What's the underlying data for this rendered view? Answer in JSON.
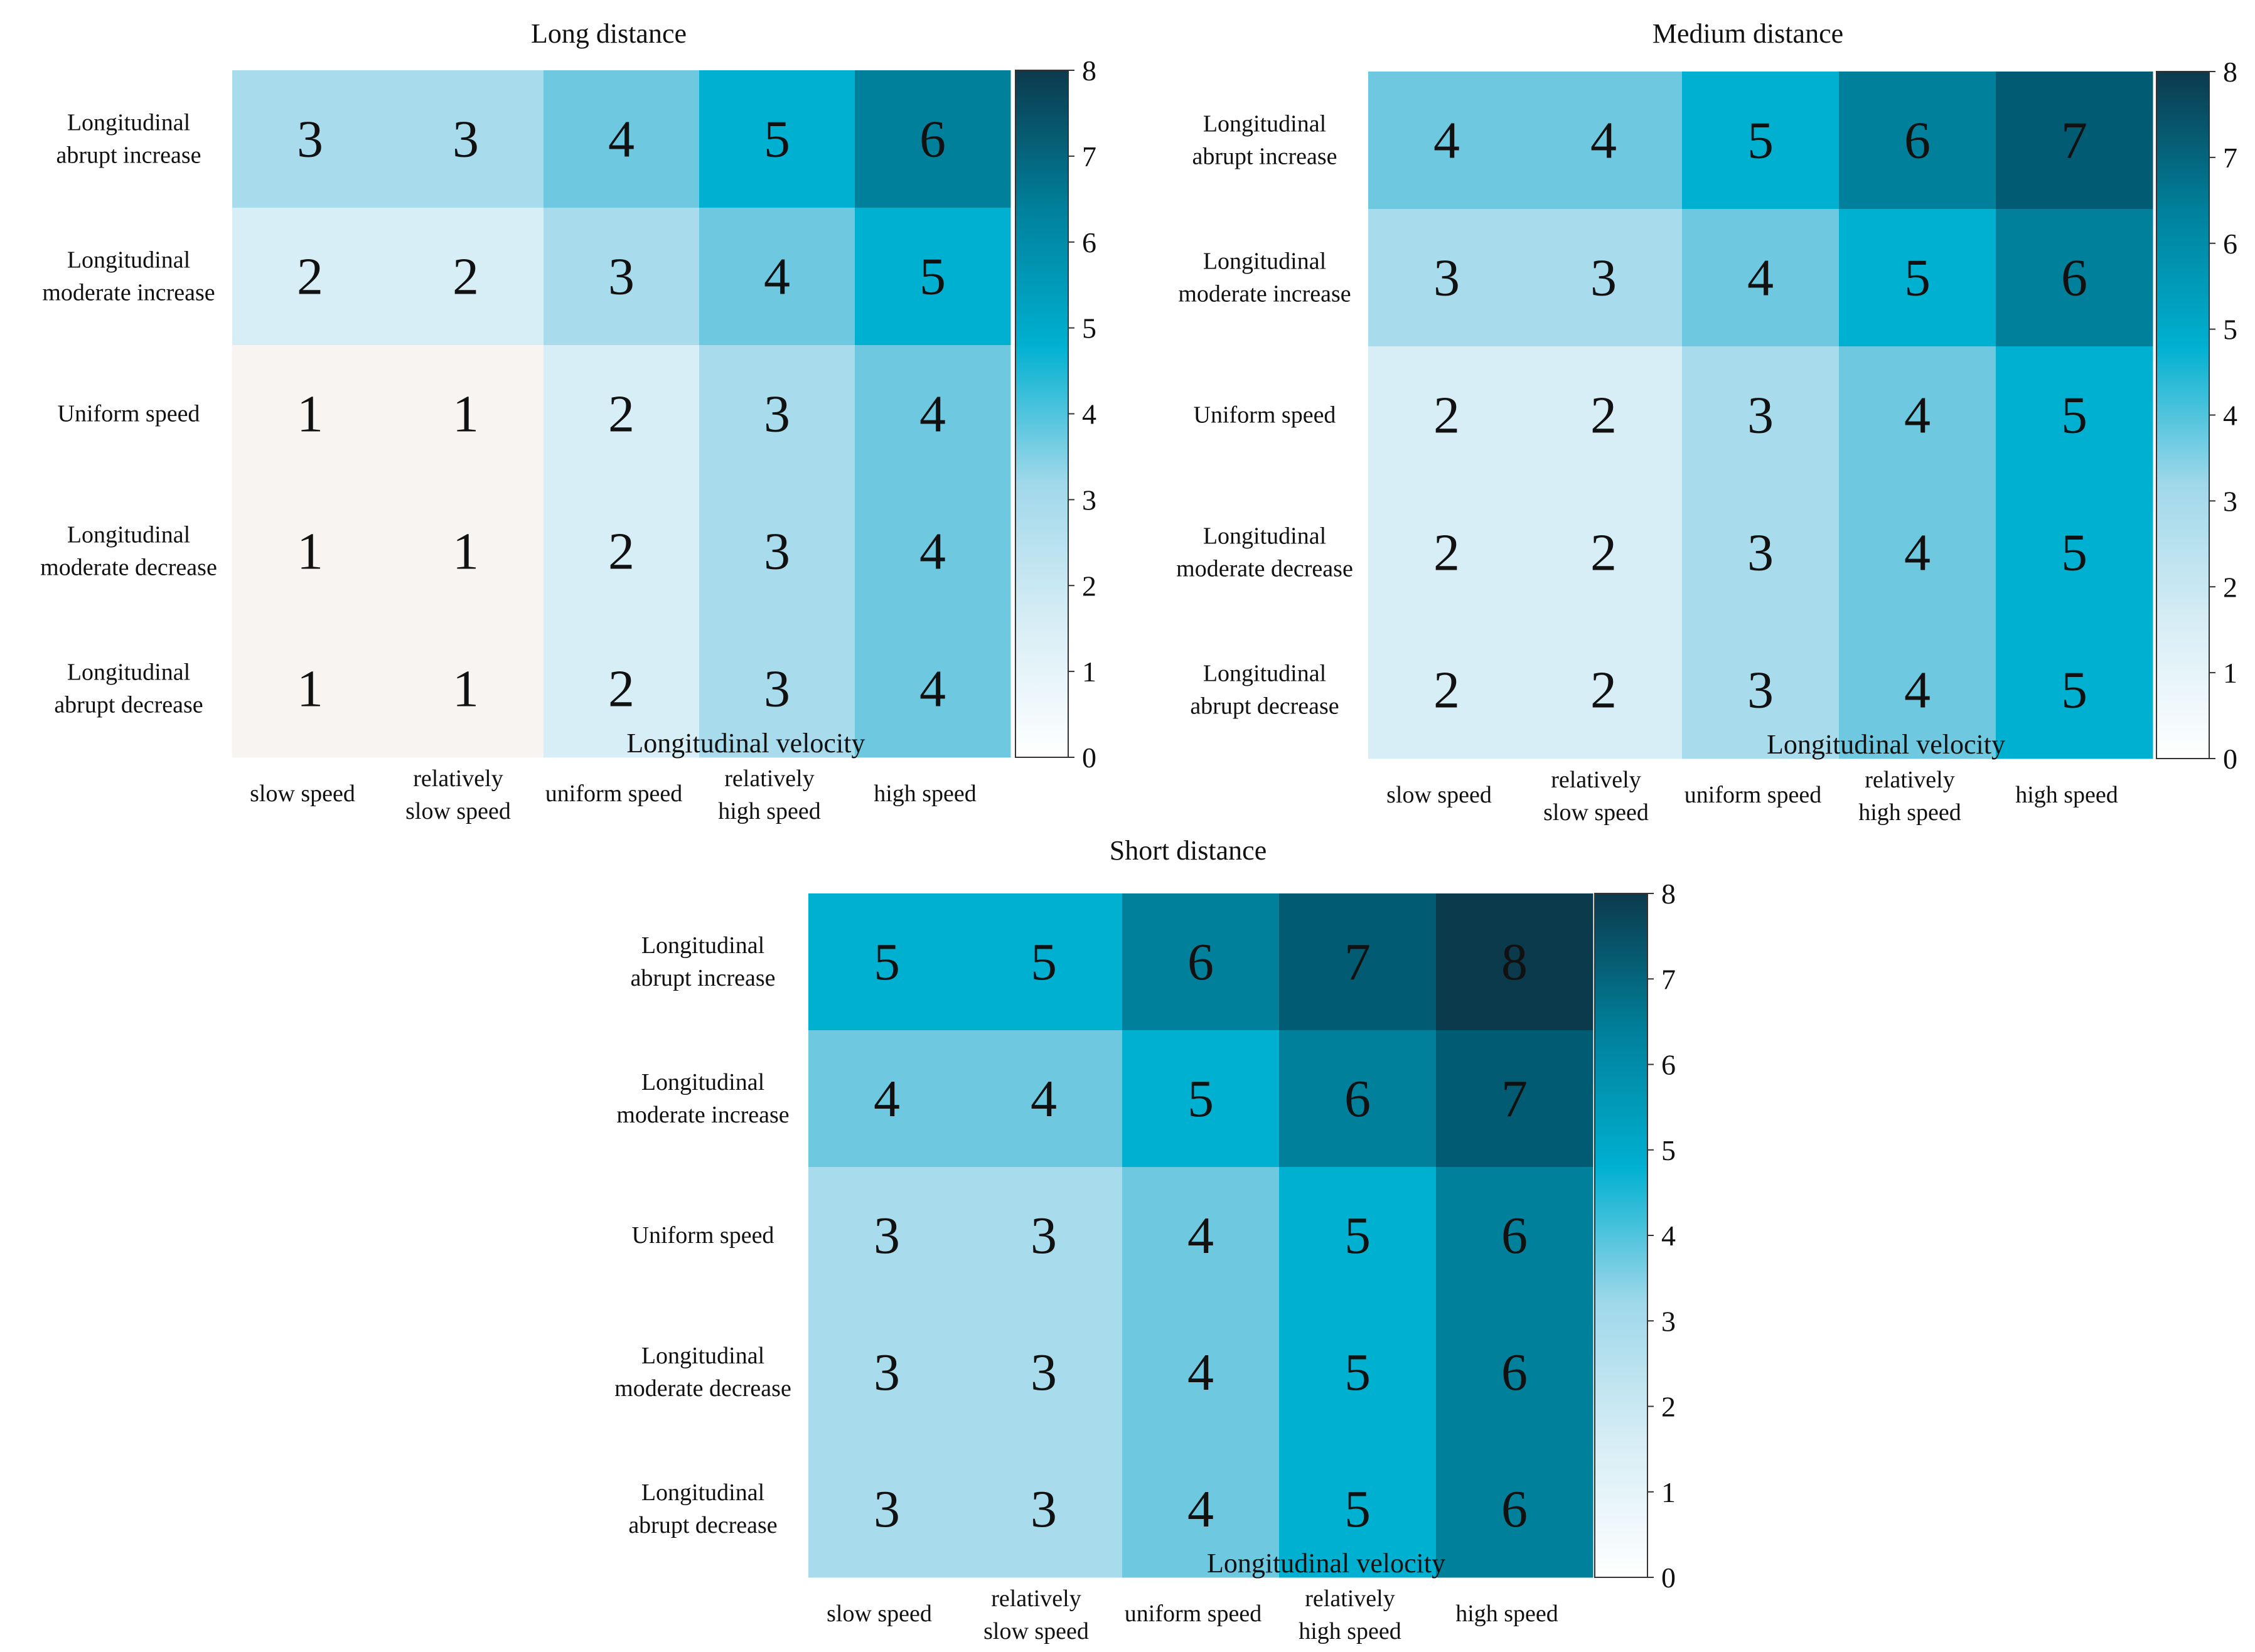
{
  "chart_data": [
    {
      "type": "heatmap",
      "title": "Long distance",
      "xlabel": "Longitudinal velocity",
      "ylabel": "",
      "x_categories": [
        "slow speed",
        "relatively slow speed",
        "uniform speed",
        "relatively high speed",
        "high speed"
      ],
      "y_categories": [
        "Longitudinal abrupt increase",
        "Longitudinal moderate increase",
        "Uniform speed",
        "Longitudinal moderate decrease",
        "Longitudinal abrupt decrease"
      ],
      "values": [
        [
          3,
          3,
          4,
          5,
          6
        ],
        [
          2,
          2,
          3,
          4,
          5
        ],
        [
          1,
          1,
          2,
          3,
          4
        ],
        [
          1,
          1,
          2,
          3,
          4
        ],
        [
          1,
          1,
          2,
          3,
          4
        ]
      ],
      "colorbar": {
        "range": [
          0,
          8
        ],
        "ticks": [
          0,
          1,
          2,
          3,
          4,
          5,
          6,
          7,
          8
        ]
      }
    },
    {
      "type": "heatmap",
      "title": "Medium distance",
      "xlabel": "Longitudinal velocity",
      "ylabel": "",
      "x_categories": [
        "slow speed",
        "relatively slow speed",
        "uniform speed",
        "relatively high speed",
        "high speed"
      ],
      "y_categories": [
        "Longitudinal abrupt increase",
        "Longitudinal moderate increase",
        "Uniform speed",
        "Longitudinal moderate decrease",
        "Longitudinal abrupt decrease"
      ],
      "values": [
        [
          4,
          4,
          5,
          6,
          7
        ],
        [
          3,
          3,
          4,
          5,
          6
        ],
        [
          2,
          2,
          3,
          4,
          5
        ],
        [
          2,
          2,
          3,
          4,
          5
        ],
        [
          2,
          2,
          3,
          4,
          5
        ]
      ],
      "colorbar": {
        "range": [
          0,
          8
        ],
        "ticks": [
          0,
          1,
          2,
          3,
          4,
          5,
          6,
          7,
          8
        ]
      }
    },
    {
      "type": "heatmap",
      "title": "Short distance",
      "xlabel": "Longitudinal velocity",
      "ylabel": "",
      "x_categories": [
        "slow speed",
        "relatively slow speed",
        "uniform speed",
        "relatively high speed",
        "high speed"
      ],
      "y_categories": [
        "Longitudinal abrupt increase",
        "Longitudinal moderate increase",
        "Uniform speed",
        "Longitudinal moderate decrease",
        "Longitudinal abrupt decrease"
      ],
      "values": [
        [
          5,
          5,
          6,
          7,
          8
        ],
        [
          4,
          4,
          5,
          6,
          7
        ],
        [
          3,
          3,
          4,
          5,
          6
        ],
        [
          3,
          3,
          4,
          5,
          6
        ],
        [
          3,
          3,
          4,
          5,
          6
        ]
      ],
      "colorbar": {
        "range": [
          0,
          8
        ],
        "ticks": [
          0,
          1,
          2,
          3,
          4,
          5,
          6,
          7,
          8
        ]
      }
    }
  ],
  "colors": {
    "scale": [
      "#f7f4f2",
      "#d8eef6",
      "#a8dbec",
      "#6ec8df",
      "#00b0d0",
      "#00809b",
      "#005b73",
      "#0c3a4d"
    ],
    "colorbar_stops": [
      "#ffffff",
      "#d6edf5",
      "#a0d8ea",
      "#00b0d0",
      "#00809b",
      "#0c3a4d"
    ]
  }
}
